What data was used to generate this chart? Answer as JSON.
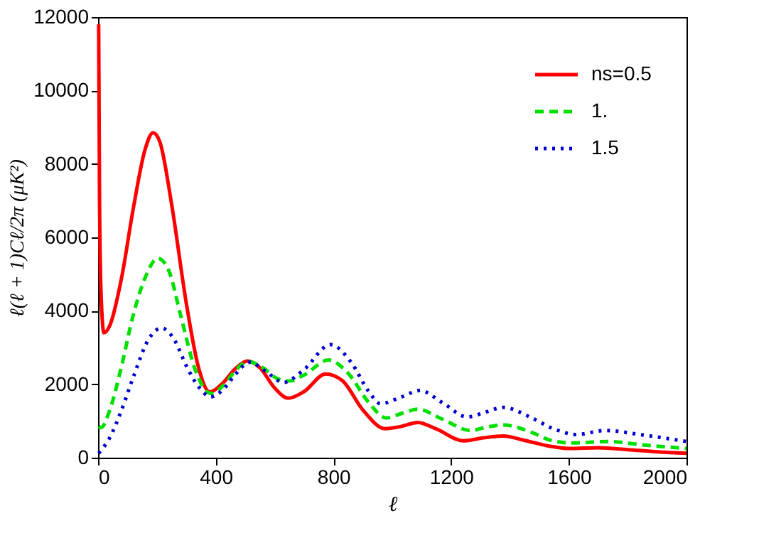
{
  "chart_data": {
    "type": "line",
    "xlabel": "ℓ",
    "ylabel": "ℓ(ℓ + 1)Cℓ/2π (μK²)",
    "xlim": [
      0,
      2000
    ],
    "xticks": [
      0,
      400,
      800,
      1200,
      1600,
      2000
    ],
    "ylim": [
      0,
      12000
    ],
    "yticks": [
      0,
      2000,
      4000,
      6000,
      8000,
      10000,
      12000
    ],
    "grid": false,
    "legend": "top right",
    "marker": "none",
    "series": [
      {
        "name": "ns=0.5",
        "color": "#ff0000",
        "line_style": "solid",
        "x": [
          2,
          5,
          10,
          20,
          40,
          80,
          120,
          160,
          187,
          210,
          250,
          300,
          340,
          380,
          420,
          470,
          508,
          550,
          600,
          646,
          700,
          773,
          830,
          900,
          975,
          1030,
          1087,
          1150,
          1241,
          1310,
          1377,
          1450,
          1530,
          1600,
          1700,
          1800,
          1900,
          2000
        ],
        "values": [
          11800,
          7000,
          4500,
          3400,
          3600,
          4900,
          6800,
          8400,
          8850,
          8600,
          6900,
          4200,
          2500,
          1790,
          2000,
          2450,
          2630,
          2450,
          1900,
          1620,
          1800,
          2280,
          2100,
          1300,
          790,
          850,
          960,
          780,
          460,
          540,
          590,
          470,
          320,
          250,
          270,
          220,
          160,
          120
        ]
      },
      {
        "name": "1.",
        "color": "#00e000",
        "line_style": "dashed",
        "x": [
          2,
          10,
          40,
          80,
          120,
          160,
          203,
          240,
          280,
          330,
          383,
          430,
          470,
          510,
          560,
          610,
          650,
          700,
          783,
          850,
          920,
          980,
          1030,
          1087,
          1170,
          1266,
          1320,
          1377,
          1470,
          1540,
          1612,
          1733,
          1850,
          2000
        ],
        "values": [
          850,
          820,
          1300,
          2500,
          3900,
          4900,
          5430,
          5100,
          3900,
          2400,
          1750,
          2000,
          2400,
          2620,
          2450,
          2150,
          2090,
          2250,
          2660,
          2300,
          1500,
          1080,
          1200,
          1320,
          1050,
          740,
          830,
          890,
          700,
          470,
          400,
          440,
          350,
          250
        ]
      },
      {
        "name": "1.5",
        "color": "#0000d0",
        "line_style": "dotted",
        "x": [
          2,
          40,
          80,
          120,
          170,
          216,
          260,
          300,
          340,
          383,
          430,
          470,
          515,
          570,
          630,
          700,
          790,
          860,
          920,
          960,
          1030,
          1094,
          1170,
          1255,
          1320,
          1377,
          1470,
          1550,
          1626,
          1723,
          1850,
          2000
        ],
        "values": [
          120,
          550,
          1300,
          2200,
          3200,
          3530,
          3200,
          2500,
          1950,
          1660,
          1900,
          2300,
          2600,
          2350,
          2050,
          2400,
          3080,
          2600,
          1800,
          1470,
          1650,
          1830,
          1500,
          1110,
          1250,
          1370,
          1100,
          780,
          630,
          740,
          620,
          440
        ]
      }
    ]
  }
}
